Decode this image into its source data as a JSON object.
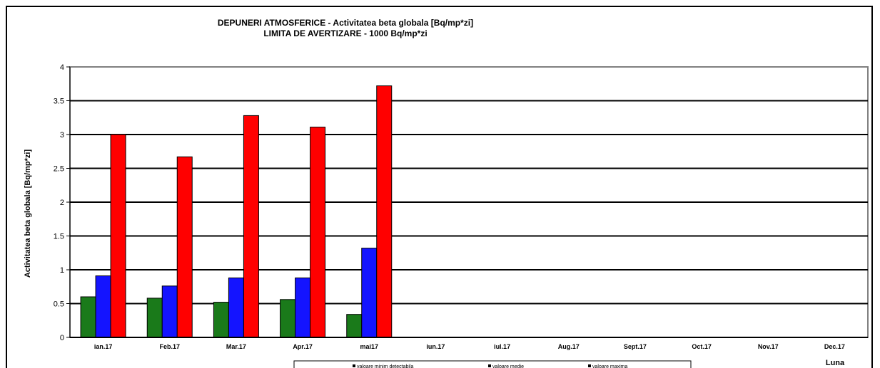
{
  "chart_data": {
    "type": "bar",
    "title": "DEPUNERI ATMOSFERICE - Activitatea beta globala [Bq/mp*zi]",
    "subtitle": "LIMITA DE AVERTIZARE - 1000 Bq/mp*zi",
    "ylabel": "Activitatea beta globala [Bq/mp*zi]",
    "xlabel": "Luna",
    "ylim": [
      0,
      4
    ],
    "yticks": [
      "0",
      "0.5",
      "1",
      "1.5",
      "2",
      "2.5",
      "3",
      "3.5",
      "4"
    ],
    "grid": true,
    "legend_position": "bottom",
    "categories": [
      "ian.17",
      "Feb.17",
      "Mar.17",
      "Apr.17",
      "mai17",
      "iun.17",
      "iul.17",
      "Aug.17",
      "Sept.17",
      "Oct.17",
      "Nov.17",
      "Dec.17"
    ],
    "series": [
      {
        "name": "valoare minim detectabila",
        "color": "#1a7a1a",
        "values": [
          0.6,
          0.58,
          0.52,
          0.56,
          0.34,
          null,
          null,
          null,
          null,
          null,
          null,
          null
        ]
      },
      {
        "name": "valoare medie",
        "color": "#1414ff",
        "values": [
          0.91,
          0.76,
          0.88,
          0.88,
          1.32,
          null,
          null,
          null,
          null,
          null,
          null,
          null
        ]
      },
      {
        "name": "valoare maxima",
        "color": "#ff0000",
        "values": [
          3.0,
          2.67,
          3.28,
          3.11,
          3.72,
          null,
          null,
          null,
          null,
          null,
          null,
          null
        ]
      }
    ]
  }
}
